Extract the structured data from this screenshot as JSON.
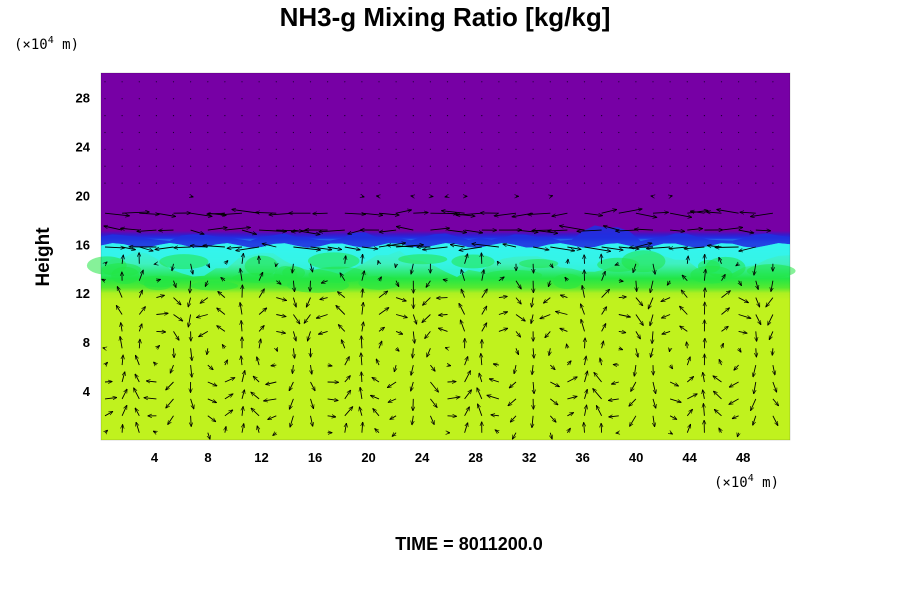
{
  "chart_data": {
    "type": "heatmap",
    "title": "NH3-g Mixing Ratio [kg/kg]",
    "ylabel": "Height",
    "x_unit_prefix": "(×10",
    "x_unit_exp": "4",
    "x_unit_suffix": " m)",
    "y_unit_prefix": "(×10",
    "y_unit_exp": "4",
    "y_unit_suffix": " m)",
    "xlim": [
      0,
      51.5
    ],
    "ylim": [
      0,
      30
    ],
    "x_ticks": [
      4,
      8,
      12,
      16,
      20,
      24,
      28,
      32,
      36,
      40,
      44,
      48
    ],
    "y_ticks": [
      4,
      8,
      12,
      16,
      20,
      24,
      28
    ],
    "time_label": "TIME = 8011200.0",
    "colors": {
      "top_layer": "#7700a5",
      "boundary": "#2030e0",
      "cyan_band": "#33f4f0",
      "green_band": "#22e646",
      "lower_layer": "#c0f21e",
      "vectors": "#000000"
    },
    "layers": [
      {
        "name": "upper",
        "y_from": 16.5,
        "y_to": 30,
        "color": "#7700a5"
      },
      {
        "name": "transition",
        "y_from": 12.5,
        "y_to": 16.5,
        "color": "#22e646"
      },
      {
        "name": "lower",
        "y_from": 0,
        "y_to": 12.5,
        "color": "#c0f21e"
      }
    ],
    "vector_field": true
  }
}
